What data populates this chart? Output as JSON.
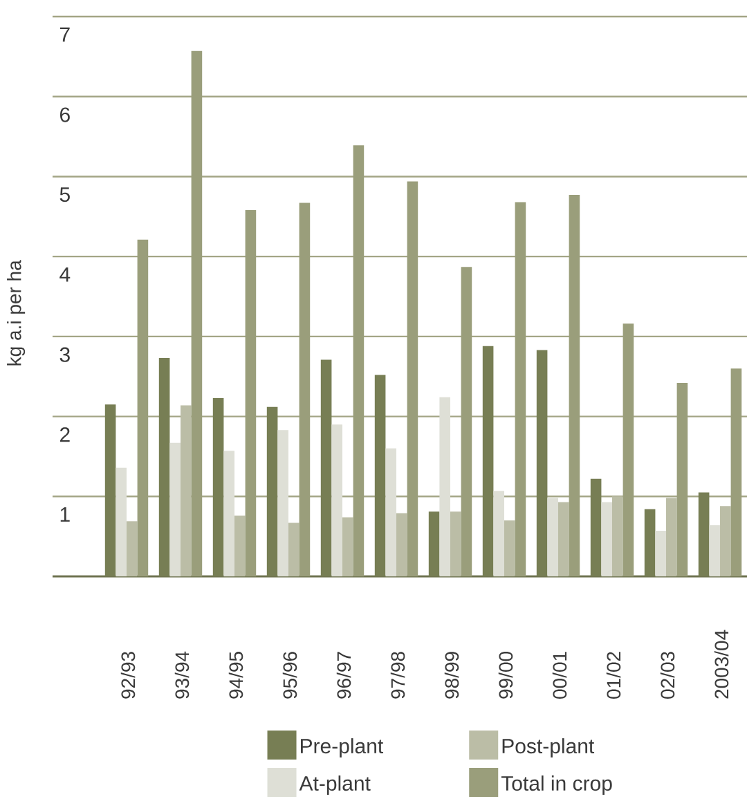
{
  "chart_data": {
    "type": "bar",
    "ylabel": "kg a.i per ha",
    "categories": [
      "92/93",
      "93/94",
      "94/95",
      "95/96",
      "96/97",
      "97/98",
      "98/99",
      "99/00",
      "00/01",
      "01/02",
      "02/03",
      "2003/04"
    ],
    "series": [
      {
        "name": "Pre-plant",
        "color": "#777e54",
        "values": [
          2.15,
          2.73,
          2.23,
          2.12,
          2.71,
          2.52,
          0.81,
          2.88,
          2.83,
          1.22,
          0.84,
          1.05
        ]
      },
      {
        "name": "At-plant",
        "color": "#dedfd6",
        "values": [
          1.36,
          1.67,
          1.57,
          1.83,
          1.9,
          1.6,
          2.24,
          1.07,
          0.98,
          0.93,
          0.57,
          0.64
        ]
      },
      {
        "name": "Post-plant",
        "color": "#bbbda6",
        "values": [
          0.69,
          2.14,
          0.76,
          0.67,
          0.74,
          0.79,
          0.81,
          0.7,
          0.93,
          1.0,
          0.98,
          0.88
        ]
      },
      {
        "name": "Total in crop",
        "color": "#9a9e7b",
        "values": [
          4.21,
          6.57,
          4.58,
          4.67,
          5.39,
          4.94,
          3.87,
          4.68,
          4.77,
          3.16,
          2.42,
          2.6
        ]
      }
    ],
    "ylim": [
      0,
      7
    ],
    "yticks": [
      1,
      2,
      3,
      4,
      5,
      6,
      7
    ],
    "grid": "y",
    "legend": "bottom"
  }
}
